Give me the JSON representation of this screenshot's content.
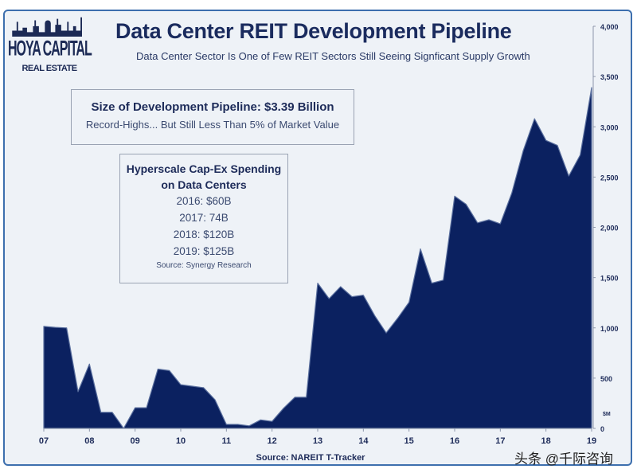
{
  "logo": {
    "line1": "HOYA CAPITAL",
    "line2": "REAL ESTATE"
  },
  "watermark": "头条 @千际咨询",
  "colors": {
    "fill": "#0b2160",
    "title": "#1a2b5e",
    "background": "#eef2f7",
    "frame": "#3d6fae"
  },
  "annotations": {
    "pipeline_box": {
      "heading": "Size of Development Pipeline: $3.39 Billion",
      "sub": "Record-Highs... But Still Less Than 5% of Market Value"
    },
    "capex_box": {
      "heading1": "Hyperscale Cap-Ex Spending",
      "heading2": "on Data Centers",
      "rows": [
        "2016: $60B",
        "2017: 74B",
        "2018: $120B",
        "2019: $125B"
      ],
      "source": "Source: Synergy Research"
    }
  },
  "chart_data": {
    "type": "area",
    "title": "Data Center REIT Development Pipeline",
    "subtitle": "Data Center Sector Is One of Few REIT Sectors Still Seeing Signficant Supply Growth",
    "source": "Source: NAREIT T-Tracker",
    "ylabel": "$M",
    "yaxis_position": "right",
    "ylim": [
      0,
      4000
    ],
    "yticks": [
      "0",
      "500",
      "1,000",
      "1,500",
      "2,000",
      "2,500",
      "3,000",
      "3,500",
      "4,000"
    ],
    "xticks": [
      "07",
      "08",
      "09",
      "10",
      "11",
      "12",
      "13",
      "14",
      "15",
      "16",
      "17",
      "18",
      "19"
    ],
    "grid": false,
    "x": [
      2007,
      2007.25,
      2007.5,
      2007.75,
      2008,
      2008.25,
      2008.5,
      2008.75,
      2009,
      2009.25,
      2009.5,
      2009.75,
      2010,
      2010.25,
      2010.5,
      2010.75,
      2011,
      2011.25,
      2011.5,
      2011.75,
      2012,
      2012.25,
      2012.5,
      2012.75,
      2013,
      2013.25,
      2013.5,
      2013.75,
      2014,
      2014.25,
      2014.5,
      2014.75,
      2015,
      2015.25,
      2015.5,
      2015.75,
      2016,
      2016.25,
      2016.5,
      2016.75,
      2017,
      2017.25,
      2017.5,
      2017.75,
      2018,
      2018.25,
      2018.5,
      2018.75,
      2019
    ],
    "values": [
      1015,
      1005,
      1000,
      365,
      640,
      160,
      160,
      0,
      205,
      205,
      590,
      575,
      435,
      420,
      405,
      285,
      40,
      40,
      25,
      85,
      70,
      200,
      310,
      310,
      1445,
      1290,
      1410,
      1310,
      1325,
      1120,
      950,
      1095,
      1255,
      1785,
      1445,
      1475,
      2310,
      2230,
      2045,
      2075,
      2035,
      2340,
      2760,
      3080,
      2865,
      2815,
      2510,
      2720,
      3390
    ]
  }
}
